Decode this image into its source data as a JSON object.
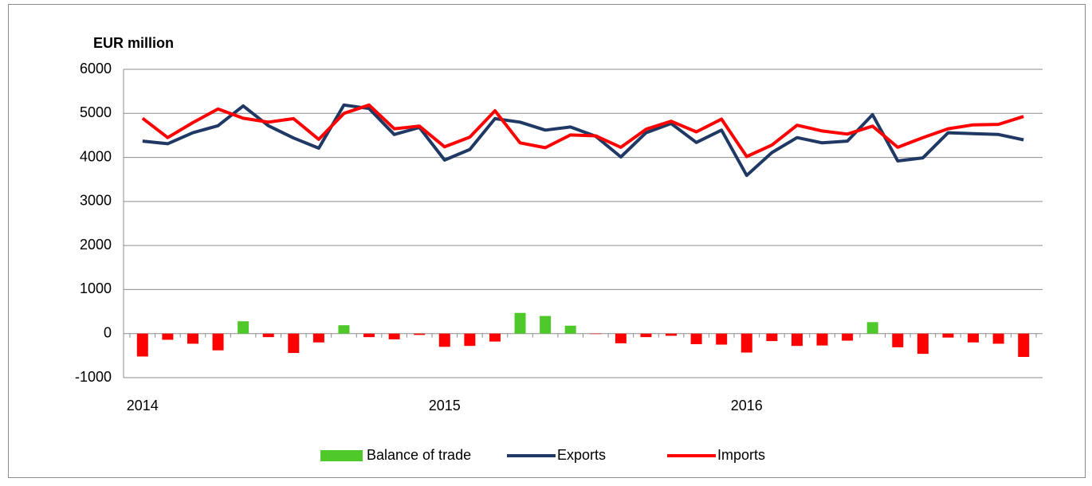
{
  "chart_data": {
    "type": "bar_line",
    "title": "EUR million",
    "categories": [
      "2014",
      null,
      null,
      null,
      null,
      null,
      null,
      null,
      null,
      null,
      null,
      null,
      "2015",
      null,
      null,
      null,
      null,
      null,
      null,
      null,
      null,
      null,
      null,
      null,
      "2016",
      null,
      null,
      null,
      null,
      null,
      null,
      null,
      null,
      null,
      null,
      null
    ],
    "series": [
      {
        "name": "Balance of trade",
        "type": "bar",
        "color": "#4fc92a",
        "negative_color": "#ff0000",
        "values": [
          -520,
          -140,
          -230,
          -380,
          280,
          -80,
          -440,
          -200,
          190,
          -80,
          -130,
          -30,
          -300,
          -280,
          -180,
          470,
          400,
          180,
          -10,
          -220,
          -80,
          -50,
          -240,
          -250,
          -430,
          -170,
          -280,
          -270,
          -160,
          260,
          -310,
          -460,
          -90,
          -200,
          -230,
          -530
        ]
      },
      {
        "name": "Exports",
        "type": "line",
        "color": "#1f3864",
        "values": [
          4370,
          4310,
          4560,
          4720,
          5170,
          4720,
          4440,
          4210,
          5190,
          5110,
          4520,
          4680,
          3940,
          4180,
          4880,
          4800,
          4620,
          4690,
          4480,
          4010,
          4560,
          4770,
          4340,
          4620,
          3590,
          4110,
          4450,
          4330,
          4370,
          4970,
          3920,
          3990,
          4560,
          4540,
          4520,
          4400
        ]
      },
      {
        "name": "Imports",
        "type": "line",
        "color": "#ff0000",
        "values": [
          4890,
          4450,
          4790,
          5100,
          4890,
          4800,
          4880,
          4410,
          5000,
          5190,
          4650,
          4710,
          4240,
          4460,
          5060,
          4330,
          4220,
          4510,
          4490,
          4230,
          4640,
          4820,
          4580,
          4870,
          4020,
          4280,
          4730,
          4600,
          4530,
          4710,
          4230,
          4450,
          4650,
          4740,
          4750,
          4930
        ]
      }
    ],
    "ylim": [
      -1000,
      6000
    ],
    "yticks": [
      -1000,
      0,
      1000,
      2000,
      3000,
      4000,
      5000,
      6000
    ],
    "grid": true,
    "legend": "bottom"
  }
}
